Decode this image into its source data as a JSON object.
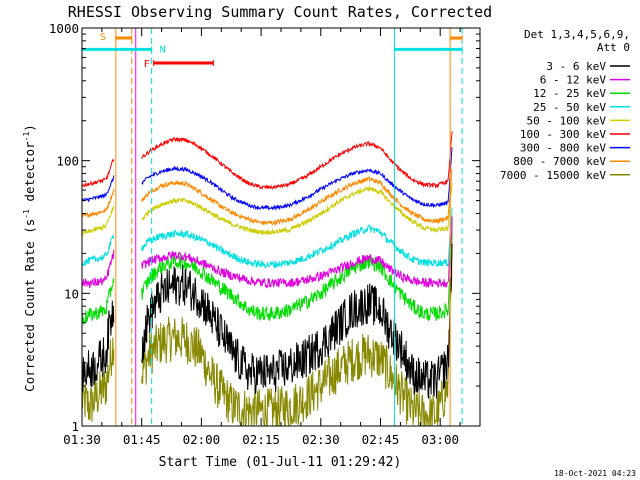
{
  "chart_data": {
    "type": "line",
    "title": "RHESSI Observing Summary Count Rates, Corrected",
    "xlabel": "Start Time (01-Jul-11 01:29:42)",
    "ylabel_main": "Corrected Count Rate (s",
    "ylabel_sup1": "-1",
    "ylabel_mid": " detector",
    "ylabel_sup2": "-1",
    "ylabel_end": ")",
    "x_unit": "minutes after 01:30",
    "xlim": [
      0,
      100
    ],
    "ylim": [
      1,
      1000
    ],
    "yscale": "log",
    "x_ticks": [
      0,
      15,
      30,
      45,
      60,
      75,
      90
    ],
    "x_tick_labels": [
      "01:30",
      "01:45",
      "02:00",
      "02:15",
      "02:30",
      "02:45",
      "03:00"
    ],
    "y_ticks": [
      1,
      10,
      100,
      1000
    ],
    "y_tick_labels": [
      "1",
      "10",
      "100",
      "1000"
    ],
    "legend": {
      "placement": "right",
      "header_line1": "Det 1,3,4,5,6,9,",
      "header_line2": "Att 0",
      "entries": [
        {
          "label": "3 - 6 keV",
          "color": "#000000"
        },
        {
          "label": "6 - 12 keV",
          "color": "#e000e0"
        },
        {
          "label": "12 - 25 keV",
          "color": "#00dd00"
        },
        {
          "label": "25 - 50 keV",
          "color": "#00e0e0"
        },
        {
          "label": "50 - 100 keV",
          "color": "#cccc00"
        },
        {
          "label": "100 - 300 keV",
          "color": "#ff0000"
        },
        {
          "label": "300 - 800 keV",
          "color": "#0000ff"
        },
        {
          "label": "800 - 7000 keV",
          "color": "#ff8800"
        },
        {
          "label": "7000 - 15000 keV",
          "color": "#888800"
        }
      ]
    },
    "series": [
      {
        "name": "3 - 6 keV",
        "color": "#000000",
        "noise": 0.45,
        "segments": [
          {
            "x": [
              0,
              3,
              6,
              7,
              8
            ],
            "y": [
              2.5,
              2.8,
              3.5,
              6,
              8
            ]
          },
          {
            "x": [
              15,
              17,
              20,
              23,
              26,
              30,
              32,
              35,
              38,
              42,
              45,
              48,
              52,
              56,
              60,
              64,
              68,
              72,
              75,
              77,
              80,
              83,
              86,
              89,
              92,
              93
            ],
            "y": [
              4,
              7,
              10,
              11.5,
              11.5,
              9,
              7,
              5,
              3.5,
              2.5,
              2.5,
              2.5,
              2.8,
              3.2,
              4,
              5.5,
              7.5,
              8.5,
              7.5,
              5.5,
              4,
              2.5,
              2.2,
              2.2,
              3,
              22
            ]
          }
        ]
      },
      {
        "name": "6 - 12 keV",
        "color": "#e000e0",
        "noise": 0.1,
        "segments": [
          {
            "x": [
              0,
              3,
              6,
              7,
              8
            ],
            "y": [
              12,
              12,
              12.5,
              16,
              20
            ]
          },
          {
            "x": [
              15,
              17,
              20,
              23,
              26,
              29,
              32,
              35,
              38,
              42,
              45,
              48,
              52,
              56,
              60,
              64,
              68,
              72,
              75,
              77,
              80,
              83,
              86,
              89,
              92,
              93
            ],
            "y": [
              16,
              17.5,
              18.5,
              19.5,
              19,
              17.5,
              16,
              14.5,
              13.5,
              12.5,
              12,
              12,
              12,
              12.5,
              13.5,
              15,
              17,
              18.5,
              17.5,
              15.5,
              13.5,
              12.5,
              12,
              12,
              12,
              35
            ]
          }
        ]
      },
      {
        "name": "12 - 25 keV",
        "color": "#00dd00",
        "noise": 0.16,
        "segments": [
          {
            "x": [
              0,
              3,
              6,
              7,
              8
            ],
            "y": [
              6.5,
              7,
              7.5,
              10,
              13
            ]
          },
          {
            "x": [
              15,
              17,
              20,
              23,
              26,
              29,
              32,
              35,
              38,
              42,
              45,
              48,
              52,
              56,
              60,
              64,
              68,
              72,
              75,
              77,
              80,
              83,
              86,
              89,
              92,
              93
            ],
            "y": [
              10,
              13,
              16,
              17.5,
              17,
              15.5,
              13,
              11,
              9.5,
              7.5,
              7,
              7,
              7.5,
              8.5,
              10,
              12.5,
              15.5,
              17.5,
              16,
              13,
              10,
              8,
              7,
              7,
              7.5,
              30
            ]
          }
        ]
      },
      {
        "name": "25 - 50 keV",
        "color": "#00e0e0",
        "noise": 0.08,
        "segments": [
          {
            "x": [
              0,
              3,
              6,
              7,
              8
            ],
            "y": [
              17,
              18,
              19,
              23,
              28
            ]
          },
          {
            "x": [
              15,
              17,
              20,
              23,
              26,
              29,
              32,
              35,
              38,
              42,
              45,
              48,
              52,
              56,
              60,
              64,
              68,
              72,
              75,
              77,
              80,
              83,
              86,
              89,
              92,
              93
            ],
            "y": [
              22,
              25,
              27,
              28,
              28,
              26,
              24,
              21,
              19,
              17,
              16.5,
              16.5,
              17,
              18.5,
              21,
              24,
              28,
              31,
              29,
              25,
              21,
              18,
              17,
              17,
              17,
              45
            ]
          }
        ]
      },
      {
        "name": "50 - 100 keV",
        "color": "#cccc00",
        "noise": 0.05,
        "segments": [
          {
            "x": [
              0,
              3,
              6,
              7,
              8
            ],
            "y": [
              28,
              30,
              32,
              38,
              45
            ]
          },
          {
            "x": [
              15,
              17,
              20,
              23,
              26,
              29,
              32,
              35,
              38,
              42,
              45,
              48,
              52,
              56,
              60,
              64,
              68,
              72,
              75,
              77,
              80,
              83,
              86,
              89,
              92,
              93
            ],
            "y": [
              36,
              42,
              47,
              50,
              50,
              46,
              41,
              36,
              33,
              30,
              29,
              29,
              30,
              34,
              40,
              48,
              56,
              62,
              58,
              50,
              41,
              35,
              31,
              30,
              31,
              70
            ]
          }
        ]
      },
      {
        "name": "100 - 300 keV",
        "color": "#ff0000",
        "noise": 0.04,
        "segments": [
          {
            "x": [
              0,
              3,
              6,
              7,
              8
            ],
            "y": [
              65,
              68,
              72,
              85,
              105
            ]
          },
          {
            "x": [
              15,
              17,
              20,
              23,
              26,
              29,
              32,
              35,
              38,
              42,
              45,
              48,
              52,
              56,
              60,
              64,
              68,
              72,
              75,
              77,
              80,
              83,
              86,
              89,
              92,
              93
            ],
            "y": [
              105,
              118,
              133,
              145,
              143,
              130,
              112,
              95,
              80,
              67,
              63,
              63,
              66,
              75,
              90,
              108,
              125,
              135,
              125,
              105,
              85,
              72,
              66,
              65,
              70,
              170
            ]
          }
        ]
      },
      {
        "name": "300 - 800 keV",
        "color": "#0000ff",
        "noise": 0.04,
        "segments": [
          {
            "x": [
              0,
              3,
              6,
              7,
              8
            ],
            "y": [
              50,
              52,
              55,
              64,
              75
            ]
          },
          {
            "x": [
              15,
              17,
              20,
              23,
              26,
              29,
              32,
              35,
              38,
              42,
              45,
              48,
              52,
              56,
              60,
              64,
              68,
              72,
              75,
              77,
              80,
              83,
              86,
              89,
              92,
              93
            ],
            "y": [
              68,
              76,
              83,
              87,
              86,
              79,
              70,
              60,
              52,
              46,
              44,
              44,
              46,
              52,
              61,
              71,
              80,
              85,
              80,
              70,
              59,
              51,
              47,
              46,
              48,
              125
            ]
          }
        ]
      },
      {
        "name": "800 - 7000 keV",
        "color": "#ff8800",
        "noise": 0.05,
        "segments": [
          {
            "x": [
              0,
              3,
              6,
              7,
              8
            ],
            "y": [
              38,
              40,
              42,
              50,
              60
            ]
          },
          {
            "x": [
              15,
              17,
              20,
              23,
              26,
              29,
              32,
              35,
              38,
              42,
              45,
              48,
              52,
              56,
              60,
              64,
              68,
              72,
              75,
              77,
              80,
              83,
              86,
              89,
              92,
              93
            ],
            "y": [
              50,
              58,
              65,
              68,
              67,
              60,
              52,
              45,
              40,
              36,
              34,
              34,
              36,
              41,
              49,
              58,
              67,
              73,
              68,
              58,
              47,
              40,
              36,
              35,
              37,
              90
            ]
          }
        ]
      },
      {
        "name": "7000 - 15000 keV",
        "color": "#888800",
        "noise": 0.5,
        "segments": [
          {
            "x": [
              0,
              2,
              4,
              6,
              7,
              8
            ],
            "y": [
              1.6,
              1.4,
              1.7,
              2,
              3,
              4.5
            ]
          },
          {
            "x": [
              15,
              17,
              20,
              23,
              26,
              30,
              32,
              35,
              38,
              42,
              45,
              48,
              52,
              56,
              60,
              64,
              68,
              72,
              75,
              77,
              80,
              83,
              86,
              89,
              92,
              93
            ],
            "y": [
              2.5,
              3.5,
              4.3,
              4.6,
              4.5,
              3.5,
              2.5,
              1.8,
              1.4,
              1.3,
              1.3,
              1.3,
              1.4,
              1.6,
              2,
              2.6,
              3.2,
              3.5,
              3.2,
              2.6,
              1.8,
              1.3,
              1.2,
              1.2,
              2,
              25
            ]
          }
        ]
      }
    ],
    "vertical_markers": [
      {
        "x": 8.5,
        "color": "#ff8800",
        "style": "solid"
      },
      {
        "x": 12.5,
        "color": "#ff8800",
        "style": "dashed"
      },
      {
        "x": 13.5,
        "color": "#ff00ff",
        "style": "solid"
      },
      {
        "x": 17.5,
        "color": "#00e0e0",
        "style": "dashed"
      },
      {
        "x": 78.5,
        "color": "#00e0e0",
        "style": "solid"
      },
      {
        "x": 92.5,
        "color": "#ff8800",
        "style": "solid"
      },
      {
        "x": 95.5,
        "color": "#00e0e0",
        "style": "dashed"
      }
    ],
    "flag_bars": [
      {
        "label": "S",
        "color": "#ff8800",
        "x0": 8.5,
        "x1": 12.5,
        "y": 840,
        "label_x": 4.5,
        "label_y": 870
      },
      {
        "label": "",
        "color": "#ff8800",
        "x0": 92.5,
        "x1": 95.5,
        "y": 840,
        "label_x": null,
        "label_y": null
      },
      {
        "label": "",
        "color": "#00e0e0",
        "x0": 0,
        "x1": 17.5,
        "y": 690,
        "label_x": null,
        "label_y": null
      },
      {
        "label": "N",
        "color": "#00e0e0",
        "x0": 78.5,
        "x1": 95.5,
        "y": 690,
        "label_x": 19.5,
        "label_y": 700
      },
      {
        "label": "F",
        "color": "#ff0000",
        "x0": 18,
        "x1": 33,
        "y": 545,
        "label_x": 15.5,
        "label_y": 545
      }
    ]
  },
  "footer": {
    "date_stamp": "18-Oct-2021 04:23"
  }
}
